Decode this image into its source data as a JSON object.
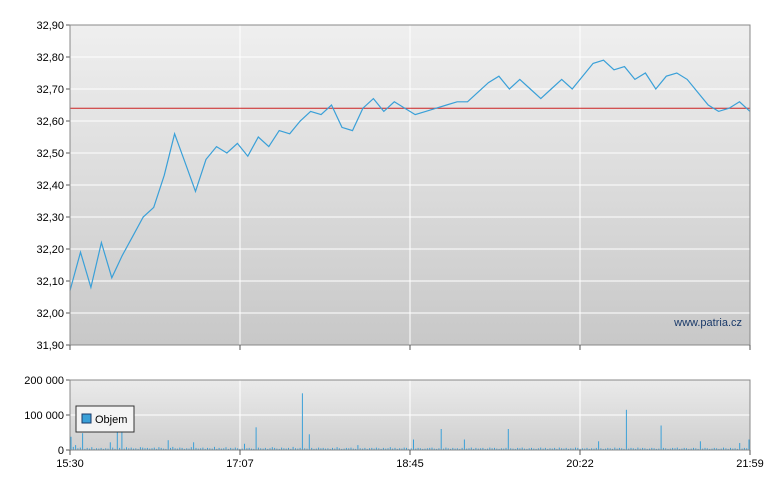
{
  "chart_data": [
    {
      "type": "line",
      "title": "",
      "xlabel": "",
      "ylabel": "",
      "ylim": [
        31.9,
        32.9
      ],
      "y_ticks": [
        "32,90",
        "32,80",
        "32,70",
        "32,60",
        "32,50",
        "32,40",
        "32,30",
        "32,20",
        "32,10",
        "32,00",
        "31,90"
      ],
      "reference_line": 32.64,
      "watermark": "www.patria.cz",
      "grid": true,
      "series": [
        {
          "color": "#3aa0d8",
          "x": [
            "15:30",
            "15:36",
            "15:40",
            "15:46",
            "15:52",
            "15:58",
            "16:04",
            "16:10",
            "16:16",
            "16:22",
            "16:28",
            "16:34",
            "16:40",
            "16:46",
            "16:52",
            "16:58",
            "17:04",
            "17:10",
            "17:16",
            "17:22",
            "17:28",
            "17:34",
            "17:40",
            "17:46",
            "17:52",
            "17:58",
            "18:04",
            "18:10",
            "18:16",
            "18:22",
            "18:28",
            "18:34",
            "18:40",
            "18:46",
            "18:52",
            "18:58",
            "19:04",
            "19:10",
            "19:16",
            "19:22",
            "19:28",
            "19:34",
            "19:40",
            "19:46",
            "19:52",
            "19:58",
            "20:04",
            "20:10",
            "20:16",
            "20:22",
            "20:28",
            "20:34",
            "20:40",
            "20:46",
            "20:52",
            "20:58",
            "21:04",
            "21:10",
            "21:16",
            "21:22",
            "21:28",
            "21:34",
            "21:40",
            "21:46",
            "21:52",
            "21:58"
          ],
          "values": [
            32.07,
            32.19,
            32.08,
            32.22,
            32.11,
            32.18,
            32.24,
            32.3,
            32.33,
            32.43,
            32.56,
            32.47,
            32.38,
            32.48,
            32.52,
            32.5,
            32.53,
            32.49,
            32.55,
            32.52,
            32.57,
            32.56,
            32.6,
            32.63,
            32.62,
            32.65,
            32.58,
            32.57,
            32.64,
            32.67,
            32.63,
            32.66,
            32.64,
            32.62,
            32.63,
            32.64,
            32.65,
            32.66,
            32.66,
            32.69,
            32.72,
            32.74,
            32.7,
            32.73,
            32.7,
            32.67,
            32.7,
            32.73,
            32.7,
            32.74,
            32.78,
            32.79,
            32.76,
            32.77,
            32.73,
            32.75,
            32.7,
            32.74,
            32.75,
            32.73,
            32.69,
            32.65,
            32.63,
            32.64,
            32.66,
            32.63
          ]
        }
      ]
    },
    {
      "type": "bar",
      "title": "",
      "xlabel": "",
      "ylabel": "",
      "ylim": [
        0,
        200000
      ],
      "y_ticks": [
        "200 000",
        "100 000",
        "0"
      ],
      "x_ticks": [
        "15:30",
        "17:07",
        "18:45",
        "20:22",
        "21:59"
      ],
      "legend": {
        "label": "Objem",
        "position": "bottom-left"
      },
      "grid": true,
      "series": [
        {
          "name": "Objem",
          "color": "#3aa0d8",
          "values": [
            38000,
            9000,
            14000,
            5000,
            7000,
            48000,
            3000,
            6000,
            4000,
            8000,
            3000,
            5000,
            4000,
            6000,
            3000,
            5000,
            4000,
            22000,
            7000,
            3000,
            110000,
            6000,
            118000,
            4000,
            8000,
            5000,
            7000,
            4000,
            5000,
            3000,
            8000,
            7000,
            5000,
            6000,
            4000,
            5000,
            7000,
            3000,
            8000,
            6000,
            4000,
            3000,
            28000,
            6000,
            9000,
            5000,
            4000,
            7000,
            6000,
            3000,
            5000,
            4000,
            8000,
            22000,
            6000,
            4000,
            5000,
            7000,
            3000,
            6000,
            5000,
            4000,
            9000,
            3000,
            6000,
            4000,
            5000,
            8000,
            3000,
            6000,
            4000,
            7000,
            5000,
            3000,
            4000,
            18000,
            5000,
            6000,
            4000,
            3000,
            65000,
            7000,
            5000,
            4000,
            6000,
            3000,
            5000,
            8000,
            6000,
            4000,
            3000,
            7000,
            5000,
            4000,
            6000,
            3000,
            9000,
            5000,
            4000,
            6000,
            162000,
            5000,
            4000,
            45000,
            6000,
            3000,
            4000,
            7000,
            5000,
            6000,
            4000,
            5000,
            3000,
            6000,
            4000,
            8000,
            5000,
            3000,
            4000,
            6000,
            5000,
            7000,
            4000,
            3000,
            14000,
            5000,
            4000,
            6000,
            3000,
            5000,
            6000,
            4000,
            7000,
            5000,
            3000,
            6000,
            4000,
            5000,
            8000,
            4000,
            6000,
            3000,
            5000,
            4000,
            7000,
            6000,
            3000,
            5000,
            30000,
            4000,
            6000,
            5000,
            3000,
            4000,
            5000,
            6000,
            7000,
            4000,
            3000,
            5000,
            60000,
            4000,
            7000,
            5000,
            3000,
            6000,
            4000,
            5000,
            3000,
            6000,
            30000,
            4000,
            5000,
            7000,
            3000,
            6000,
            4000,
            5000,
            6000,
            3000,
            4000,
            7000,
            5000,
            6000,
            4000,
            3000,
            5000,
            4000,
            6000,
            60000,
            5000,
            4000,
            3000,
            6000,
            5000,
            7000,
            4000,
            3000,
            5000,
            6000,
            4000,
            3000,
            5000,
            7000,
            4000,
            6000,
            3000,
            5000,
            4000,
            6000,
            3000,
            7000,
            5000,
            4000,
            6000,
            3000,
            5000,
            4000,
            7000,
            6000,
            3000,
            5000,
            4000,
            6000,
            3000,
            5000,
            4000,
            6000,
            25000,
            5000,
            3000,
            4000,
            6000,
            5000,
            3000,
            7000,
            4000,
            6000,
            5000,
            3000,
            115000,
            4000,
            6000,
            5000,
            3000,
            7000,
            4000,
            6000,
            5000,
            3000,
            4000,
            6000,
            5000,
            3000,
            4000,
            70000,
            6000,
            5000,
            3000,
            4000,
            6000,
            5000,
            7000,
            3000,
            4000,
            6000,
            5000,
            3000,
            4000,
            6000,
            5000,
            3000,
            25000,
            4000,
            6000,
            5000,
            3000,
            4000,
            6000,
            5000,
            3000,
            4000,
            7000,
            5000,
            3000,
            6000,
            4000,
            5000,
            3000,
            20000,
            4000,
            6000,
            5000,
            30000
          ]
        }
      ]
    }
  ]
}
